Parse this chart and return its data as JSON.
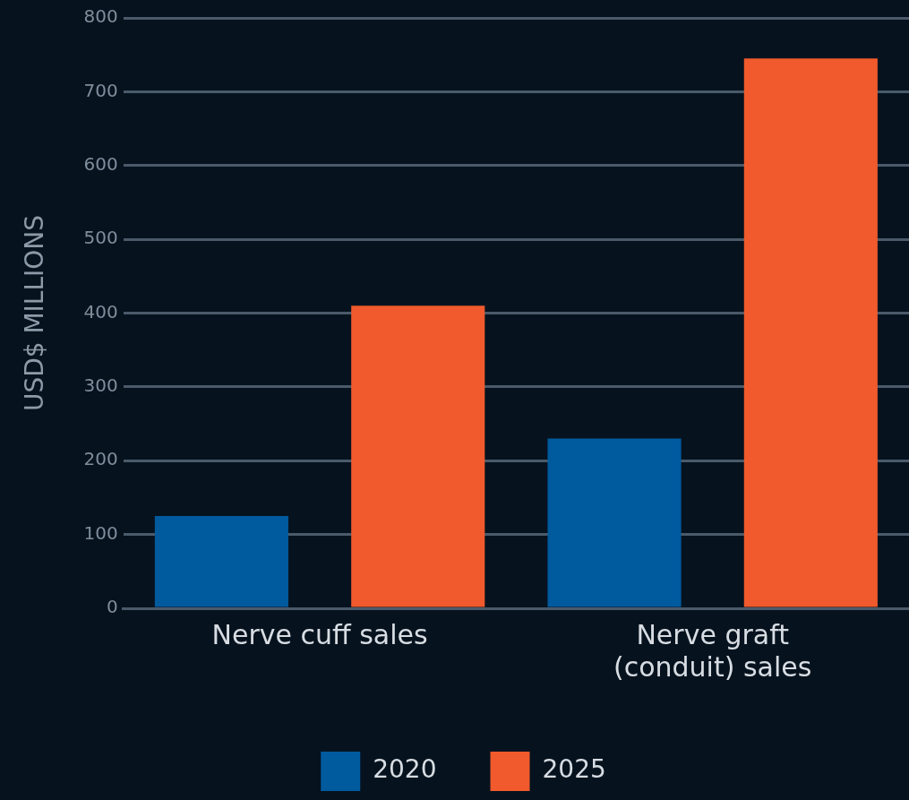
{
  "chart_data": {
    "type": "bar",
    "ylabel": "USD$ MILLIONS",
    "categories": [
      "Nerve cuff sales",
      "Nerve graft (conduit) sales"
    ],
    "series": [
      {
        "name": "2020",
        "color": "#005a9e",
        "values": [
          125,
          230
        ]
      },
      {
        "name": "2025",
        "color": "#f05a2c",
        "values": [
          410,
          745
        ]
      }
    ],
    "ylim": [
      0,
      800
    ],
    "yticks": [
      0,
      100,
      200,
      300,
      400,
      500,
      600,
      700,
      800
    ],
    "grid": "y",
    "legend": "bottom"
  }
}
